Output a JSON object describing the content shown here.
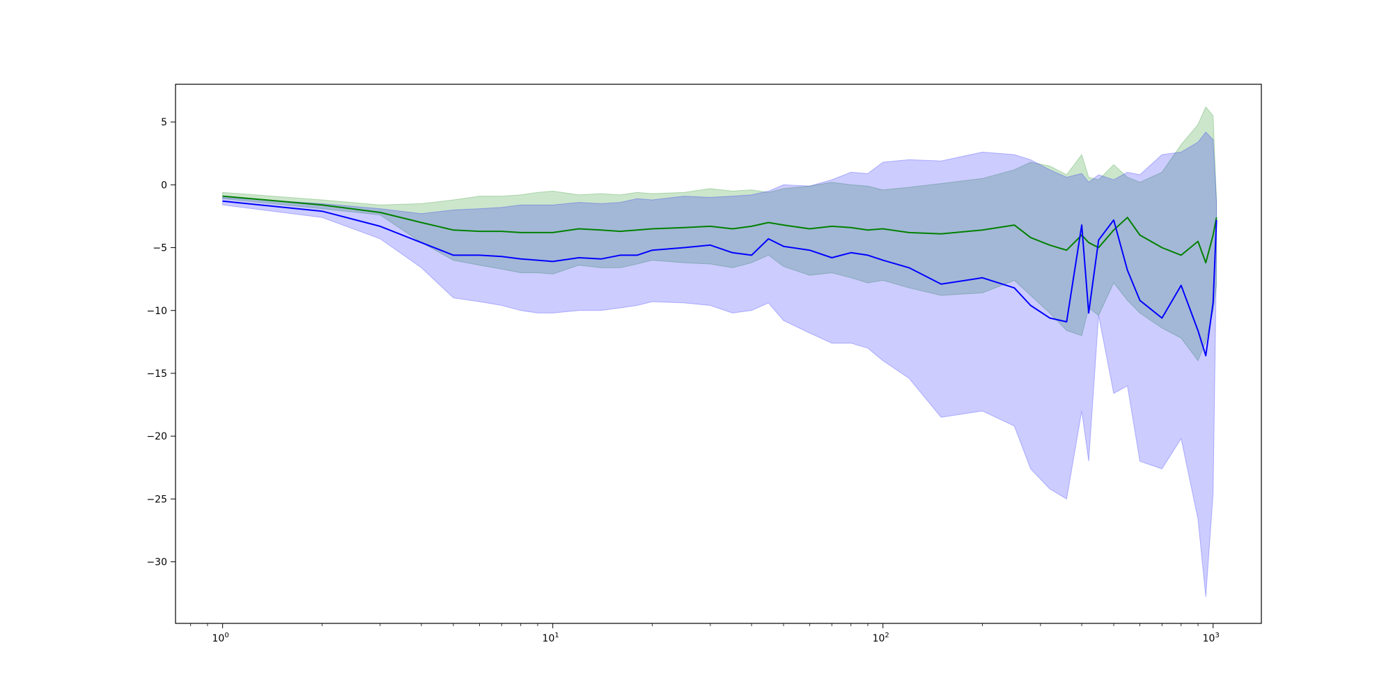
{
  "chart_data": {
    "type": "line",
    "title": "",
    "xlabel": "",
    "ylabel": "",
    "x_scale": "log",
    "xlim": [
      0.72,
      1400
    ],
    "ylim": [
      -34.9,
      8.0
    ],
    "grid": false,
    "legend": "none",
    "x_ticks": [
      {
        "value": 1,
        "base": "10",
        "exp": "0"
      },
      {
        "value": 10,
        "base": "10",
        "exp": "1"
      },
      {
        "value": 100,
        "base": "10",
        "exp": "2"
      },
      {
        "value": 1000,
        "base": "10",
        "exp": "3"
      }
    ],
    "y_ticks": [
      {
        "value": 5,
        "label": "5"
      },
      {
        "value": 0,
        "label": "0"
      },
      {
        "value": -5,
        "label": "−5"
      },
      {
        "value": -10,
        "label": "−10"
      },
      {
        "value": -15,
        "label": "−15"
      },
      {
        "value": -20,
        "label": "−20"
      },
      {
        "value": -25,
        "label": "−25"
      },
      {
        "value": -30,
        "label": "−30"
      }
    ],
    "series": [
      {
        "color": "#008000",
        "band_color": "#008000",
        "band_opacity": 0.2,
        "x": [
          1,
          2,
          3,
          4,
          5,
          6,
          7,
          8,
          9,
          10,
          12,
          14,
          16,
          18,
          20,
          25,
          30,
          35,
          40,
          45,
          50,
          60,
          70,
          80,
          90,
          100,
          120,
          150,
          200,
          250,
          280,
          320,
          360,
          400,
          420,
          450,
          500,
          550,
          600,
          700,
          800,
          900,
          950,
          1000,
          1024
        ],
        "mean": [
          -0.9,
          -1.6,
          -2.2,
          -3.0,
          -3.6,
          -3.7,
          -3.7,
          -3.8,
          -3.8,
          -3.8,
          -3.5,
          -3.6,
          -3.7,
          -3.6,
          -3.5,
          -3.4,
          -3.3,
          -3.5,
          -3.3,
          -3.0,
          -3.2,
          -3.5,
          -3.3,
          -3.4,
          -3.6,
          -3.5,
          -3.8,
          -3.9,
          -3.6,
          -3.2,
          -4.2,
          -4.8,
          -5.2,
          -4.0,
          -4.6,
          -5.0,
          -3.6,
          -2.6,
          -4.0,
          -5.0,
          -5.6,
          -4.5,
          -6.2,
          -4.0,
          -2.6
        ],
        "lower": [
          -1.1,
          -1.9,
          -2.4,
          -4.6,
          -6.0,
          -6.4,
          -6.7,
          -7.0,
          -7.0,
          -7.1,
          -6.4,
          -6.6,
          -6.6,
          -6.3,
          -6.0,
          -6.2,
          -6.3,
          -6.6,
          -6.2,
          -5.6,
          -6.5,
          -7.2,
          -7.0,
          -7.4,
          -7.8,
          -7.6,
          -8.2,
          -8.8,
          -8.6,
          -7.6,
          -8.8,
          -10.2,
          -11.6,
          -12.0,
          -9.8,
          -10.4,
          -7.8,
          -9.2,
          -10.2,
          -11.4,
          -12.2,
          -14.0,
          -12.5,
          -10.0,
          -8.0
        ],
        "upper": [
          -0.6,
          -1.2,
          -1.6,
          -1.5,
          -1.2,
          -0.9,
          -0.9,
          -0.8,
          -0.6,
          -0.5,
          -0.8,
          -0.7,
          -0.8,
          -0.6,
          -0.7,
          -0.6,
          -0.3,
          -0.5,
          -0.4,
          -0.6,
          -0.3,
          -0.1,
          0.2,
          0.0,
          -0.1,
          -0.4,
          -0.2,
          0.1,
          0.5,
          1.2,
          1.8,
          1.5,
          0.8,
          2.4,
          0.6,
          0.4,
          1.6,
          0.6,
          0.2,
          1.0,
          3.2,
          4.8,
          6.2,
          5.5,
          -1.2
        ]
      },
      {
        "color": "#0000ff",
        "band_color": "#0000ff",
        "band_opacity": 0.2,
        "x": [
          1,
          2,
          3,
          4,
          5,
          6,
          7,
          8,
          9,
          10,
          12,
          14,
          16,
          18,
          20,
          25,
          30,
          35,
          40,
          45,
          50,
          60,
          70,
          80,
          90,
          100,
          120,
          150,
          200,
          250,
          280,
          320,
          360,
          400,
          420,
          450,
          500,
          550,
          600,
          700,
          800,
          900,
          950,
          1000,
          1024
        ],
        "mean": [
          -1.3,
          -2.1,
          -3.3,
          -4.6,
          -5.6,
          -5.6,
          -5.7,
          -5.9,
          -6.0,
          -6.1,
          -5.8,
          -5.9,
          -5.6,
          -5.6,
          -5.2,
          -5.0,
          -4.8,
          -5.4,
          -5.6,
          -4.3,
          -4.9,
          -5.2,
          -5.8,
          -5.4,
          -5.6,
          -6.0,
          -6.6,
          -7.9,
          -7.4,
          -8.2,
          -9.6,
          -10.6,
          -10.9,
          -3.2,
          -10.2,
          -4.4,
          -2.8,
          -6.8,
          -9.2,
          -10.6,
          -8.0,
          -11.6,
          -13.6,
          -9.4,
          -2.8
        ],
        "lower": [
          -1.6,
          -2.6,
          -4.3,
          -6.6,
          -9.0,
          -9.3,
          -9.6,
          -10.0,
          -10.2,
          -10.2,
          -10.0,
          -10.0,
          -9.8,
          -9.6,
          -9.3,
          -9.4,
          -9.6,
          -10.2,
          -10.0,
          -9.4,
          -10.8,
          -11.8,
          -12.6,
          -12.6,
          -13.0,
          -14.0,
          -15.4,
          -18.5,
          -18.0,
          -19.2,
          -22.6,
          -24.2,
          -25.0,
          -18.0,
          -22.0,
          -10.4,
          -16.6,
          -16.0,
          -22.0,
          -22.6,
          -20.2,
          -26.6,
          -32.8,
          -24.6,
          -6.0
        ],
        "upper": [
          -1.0,
          -1.5,
          -1.9,
          -2.3,
          -2.0,
          -1.9,
          -1.8,
          -1.6,
          -1.6,
          -1.6,
          -1.4,
          -1.5,
          -1.4,
          -1.1,
          -1.2,
          -0.9,
          -1.0,
          -0.9,
          -0.8,
          -0.5,
          0.0,
          -0.1,
          0.4,
          1.0,
          0.9,
          1.8,
          2.0,
          1.9,
          2.6,
          2.4,
          2.0,
          1.2,
          0.6,
          0.9,
          0.2,
          0.8,
          0.4,
          1.0,
          0.8,
          2.4,
          2.6,
          3.4,
          4.2,
          3.6,
          -1.4
        ]
      }
    ]
  }
}
